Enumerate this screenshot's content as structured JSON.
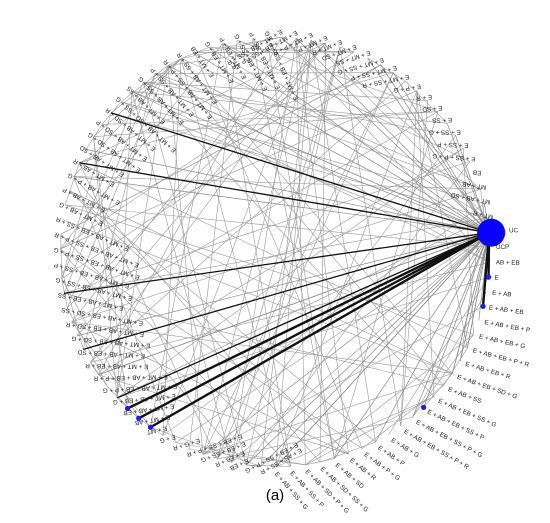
{
  "nodes": [
    "UC",
    "UCP",
    "AB + EB",
    "E",
    "E + AB",
    "E + AB + EB",
    "E + AB + EB + P",
    "E + AB + EB + G",
    "E + AB + EB + P + R",
    "E + AB + EB + R",
    "E + AB + EB + SD + G",
    "E + AB + SS",
    "E + AB + EB + SS + G",
    "E + AB + EB + SS + P",
    "E + AB + EB + SS + P + G",
    "E + AB + EB + SS + P + R",
    "E + AB + G",
    "E + AB + P",
    "E + AB + P + G",
    "E + AB + R",
    "E + AB + SD",
    "E + AB + SD + SS + G",
    "E + AB + SD + P + G",
    "E + AB + SS + P",
    "E + AB + SS + G",
    "E + AB + SS + R",
    "E + EB + SS + P + G",
    "E + EB",
    "E + EB + R",
    "E + EB + SS + G",
    "E + EB + SS + P + R",
    "E + G + R",
    "E + G",
    "E + MT",
    "E + MT + AB",
    "E + MT + AB + EB",
    "E + MT + AB + EB + G",
    "E + MT + AB + EB + P + G",
    "E + MT + AB + EB + P + R",
    "E + MT + AB + EB + R",
    "E + MT + AB + EB + SD",
    "E + MT + AB + EB + SD + G",
    "E + MT + AB + EB + SD + R",
    "E + MT + AB + EB + SD + SS",
    "E + MT + AB + EB + SS",
    "E + MT + AB + EB + SS + G",
    "E + MT + AB + EB + SS + P",
    "E + MT + AB + EB + SS + P + G",
    "E + MT + AB + EB + SS + P + R",
    "E + MT + AB + EB + SS + R",
    "E + MT + AB + G",
    "E + MT + AB + P",
    "E + MT + AB + P + G",
    "E + MT + AB + R",
    "E + MT + AB + SD",
    "E + MT + AB + SD + G",
    "E + MT + AB + SD + P",
    "E + MT + AB + SD + R",
    "E + MT + AB + SD + SS + G",
    "E + MT + AB + SS",
    "E + MT + AB + SS + G",
    "E + MT + AB + SS + P",
    "E + MT + AB + SS + P + R",
    "E + MT + AB + SS + R",
    "E + MT + EB",
    "E + MT + EB + G",
    "E + MT + EB + P",
    "E + MT + EB + SS + G",
    "E + MT + EB + SS + P",
    "E + MT + EB + SS + P + G",
    "E + MT + EB + SS + R",
    "E + MT + EB + SS + P + R",
    "E + MT + P + R",
    "E + MT + P",
    "E + MT + R",
    "E + MT + SD",
    "E + MT + SS",
    "E + MT + SS + G",
    "E + MT + SS + P",
    "E + MT + SS + R",
    "E + P + G",
    "E + R",
    "E + SD",
    "E + SS",
    "E + SS + G",
    "E + SS + P",
    "E + SS + P + G",
    "EB",
    "MT + AB",
    "MT + AB + SD",
    "MT + R"
  ],
  "caption": "(a)"
}
